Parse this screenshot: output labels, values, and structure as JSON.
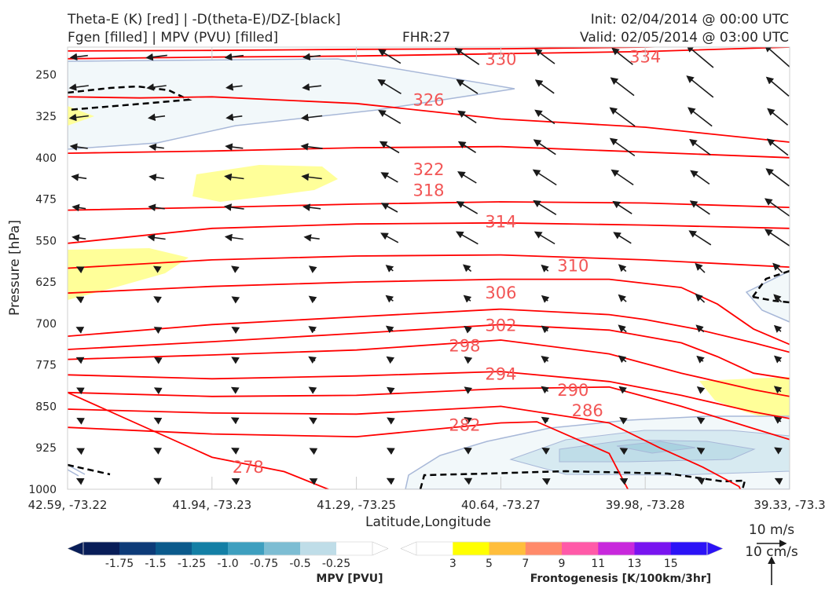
{
  "header": {
    "title_line1": "Theta-E (K) [red] | -D(theta-E)/DZ-[black]",
    "title_line2": "Fgen [filled] | MPV (PVU) [filled]",
    "fhr": "FHR:27",
    "init": "Init: 02/04/2014 @ 00:00 UTC",
    "valid": "Valid: 02/05/2014 @ 03:00 UTC"
  },
  "chart_data": {
    "type": "cross-section",
    "xlabel": "Latitude,Longitude",
    "ylabel": "Pressure [hPa]",
    "x_ticks": [
      "42.59, -73.22",
      "41.94, -73.23",
      "41.29, -73.25",
      "40.64, -73.27",
      "39.98, -73.28",
      "39.33, -73.3"
    ],
    "y_ticks": [
      250,
      325,
      400,
      475,
      550,
      625,
      700,
      775,
      850,
      925,
      1000
    ],
    "ylim": [
      200,
      1000
    ],
    "y_inverted": true,
    "theta_e_contours": [
      {
        "value": "278",
        "label_x": 0.25,
        "label_p": 960
      },
      {
        "value": "282",
        "label_x": 0.55,
        "label_p": 884
      },
      {
        "value": "286",
        "label_x": 0.72,
        "label_p": 858
      },
      {
        "value": "290",
        "label_x": 0.7,
        "label_p": 821
      },
      {
        "value": "294",
        "label_x": 0.6,
        "label_p": 792
      },
      {
        "value": "298",
        "label_x": 0.55,
        "label_p": 741
      },
      {
        "value": "302",
        "label_x": 0.6,
        "label_p": 704
      },
      {
        "value": "306",
        "label_x": 0.6,
        "label_p": 645
      },
      {
        "value": "310",
        "label_x": 0.7,
        "label_p": 596
      },
      {
        "value": "314",
        "label_x": 0.6,
        "label_p": 516
      },
      {
        "value": "318",
        "label_x": 0.5,
        "label_p": 459
      },
      {
        "value": "322",
        "label_x": 0.5,
        "label_p": 422
      },
      {
        "value": "326",
        "label_x": 0.5,
        "label_p": 296
      },
      {
        "value": "330",
        "label_x": 0.6,
        "label_p": 222
      },
      {
        "value": "334",
        "label_x": 0.8,
        "label_p": 218
      }
    ],
    "reference_vectors": {
      "horizontal": "10 m/s",
      "vertical": "10 cm/s"
    },
    "mpv_colorbar": {
      "title": "MPV [PVU]",
      "ticks": [
        "-1.75",
        "-1.5",
        "-1.25",
        "-1.0",
        "-0.75",
        "-0.5",
        "-0.25"
      ],
      "colors": [
        "#081d58",
        "#0d3b78",
        "#0b5a8c",
        "#137fa5",
        "#3e9fbf",
        "#7dbdd3",
        "#bfdde8",
        "#ffffff"
      ]
    },
    "fgen_colorbar": {
      "title": "Frontogenesis [K/100km/3hr]",
      "ticks": [
        "3",
        "5",
        "7",
        "9",
        "11",
        "13",
        "15"
      ],
      "colors": [
        "#ffffff",
        "#ffff00",
        "#ffbe3c",
        "#ff8a6a",
        "#ff5aa8",
        "#c828dc",
        "#7814f0",
        "#2b12f6"
      ]
    },
    "colors": {
      "theta_e": "#ff0000",
      "label": "#f25555",
      "mpv_fill": "#f2f8fa",
      "fgen_fill": "#ffff99",
      "contour_outline": "#a8b8d8"
    }
  }
}
